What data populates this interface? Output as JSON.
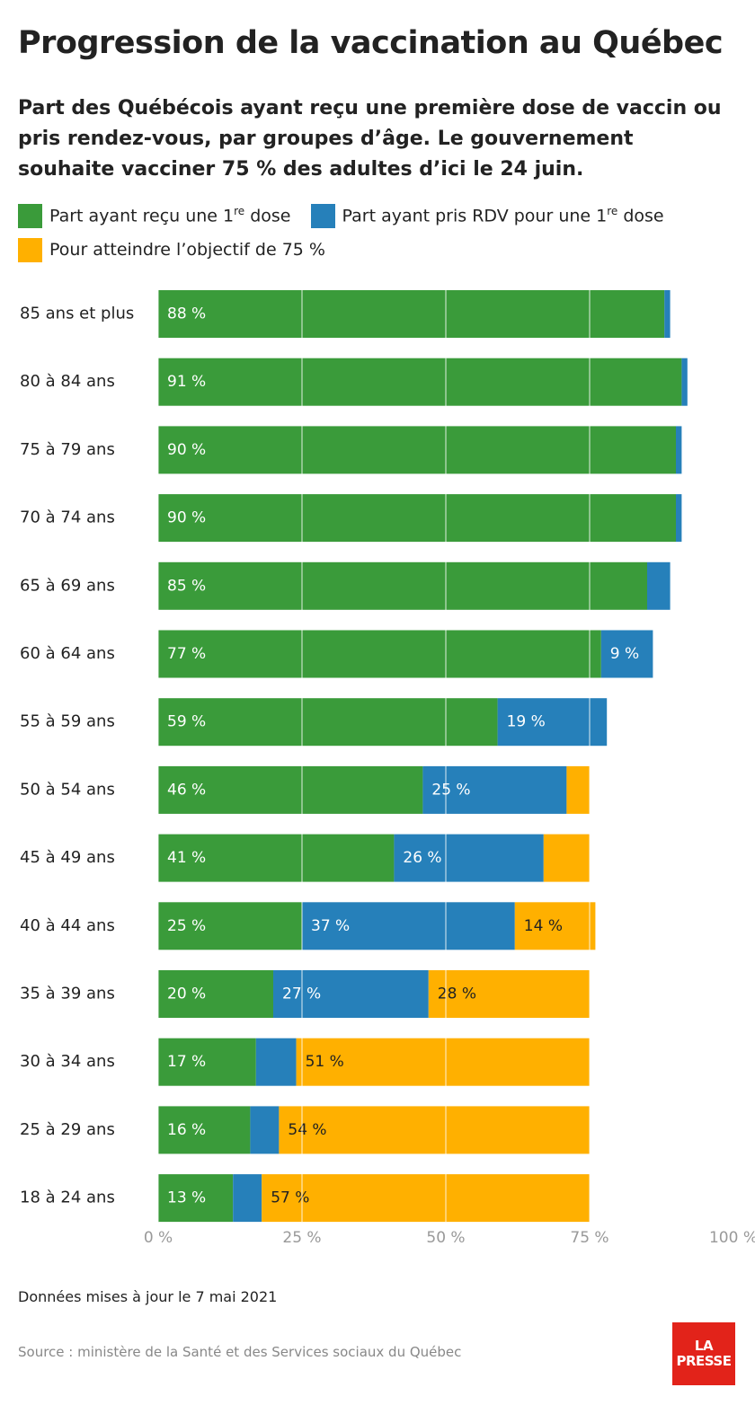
{
  "chart_data": {
    "type": "stacked-bar-horizontal",
    "title": "Progression de la vaccination au Québec",
    "subtitle": "Part des Québécois ayant reçu une première dose de vaccin ou pris rendez-vous, par groupes d’âge. Le gouvernement souhaite vacciner 75 % des adultes d’ici le 24 juin.",
    "categories": [
      "85 ans et plus",
      "80 à 84 ans",
      "75 à 79 ans",
      "70 à 74 ans",
      "65 à 69 ans",
      "60 à 64 ans",
      "55 à 59 ans",
      "50 à 54 ans",
      "45 à 49 ans",
      "40 à 44 ans",
      "35 à 39 ans",
      "30 à 34 ans",
      "25 à 29 ans",
      "18 à 24 ans"
    ],
    "series": [
      {
        "name": "Part ayant reçu une 1re dose",
        "color": "#3a9b3a",
        "label_color": "#ffffff",
        "values": [
          88,
          91,
          90,
          90,
          85,
          77,
          59,
          46,
          41,
          25,
          20,
          17,
          16,
          13
        ],
        "value_labels": [
          "88 %",
          "91 %",
          "90 %",
          "90 %",
          "85 %",
          "77 %",
          "59 %",
          "46 %",
          "41 %",
          "25 %",
          "20 %",
          "17 %",
          "16 %",
          "13 %"
        ]
      },
      {
        "name": "Part ayant pris RDV pour une 1re dose",
        "color": "#2680ba",
        "label_color": "#ffffff",
        "values": [
          1,
          1,
          1,
          1,
          4,
          9,
          19,
          25,
          26,
          37,
          27,
          7,
          5,
          5
        ],
        "value_labels": [
          null,
          null,
          null,
          null,
          null,
          "9 %",
          "19 %",
          "25 %",
          "26 %",
          "37 %",
          "27 %",
          null,
          null,
          null
        ]
      },
      {
        "name": "Pour atteindre l’objectif de 75 %",
        "color": "#ffb000",
        "label_color": "#222222",
        "values": [
          0,
          0,
          0,
          0,
          0,
          0,
          0,
          4,
          8,
          14,
          28,
          51,
          54,
          57
        ],
        "value_labels": [
          null,
          null,
          null,
          null,
          null,
          null,
          null,
          null,
          null,
          "14 %",
          "28 %",
          "51 %",
          "54 %",
          "57 %"
        ]
      }
    ],
    "xlim": [
      0,
      100
    ],
    "xticks": [
      {
        "value": 0,
        "label": "0 %"
      },
      {
        "value": 25,
        "label": "25 %"
      },
      {
        "value": 50,
        "label": "50 %"
      },
      {
        "value": 75,
        "label": "75 %"
      },
      {
        "value": 100,
        "label": "100 %"
      }
    ],
    "grid": true,
    "footnote": "Données mises à jour le 7 mai 2021",
    "source": "Source : ministère de la Santé et des Services sociaux du Québec",
    "logo": [
      "LA",
      "PRESSE"
    ]
  }
}
